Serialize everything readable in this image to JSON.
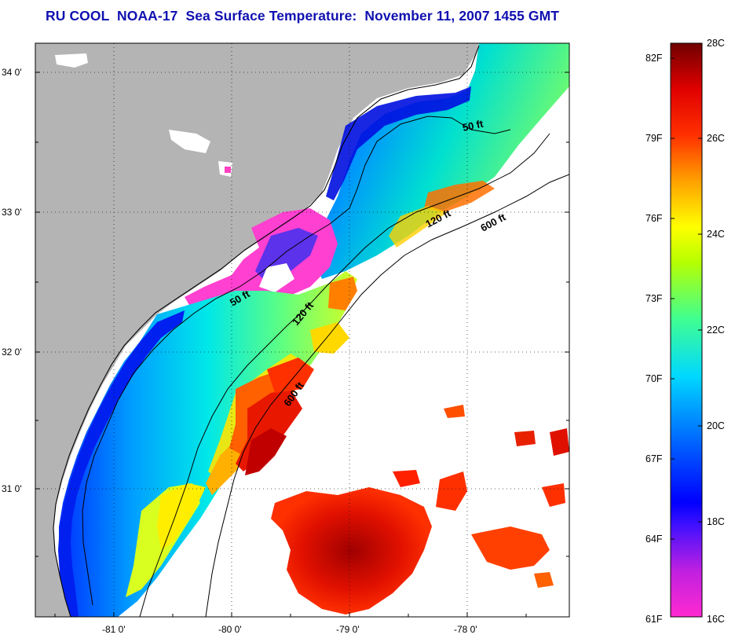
{
  "title": "RU COOL  NOAA-17  Sea Surface Temperature:  November 11, 2007 1455 GMT",
  "colors": {
    "land": "#b4b4b4",
    "title": "#1010b0",
    "cloud": "#ffffff"
  },
  "axes": {
    "lat_ticks": [
      "34 0'",
      "33 0'",
      "32 0'",
      "31 0'"
    ],
    "lon_ticks": [
      "-81 0'",
      "-80 0'",
      "-79 0'",
      "-78 0'"
    ]
  },
  "contours": {
    "isobath_50": "50 ft",
    "isobath_120": "120 ft",
    "isobath_600": "600 ft"
  },
  "colorbar": {
    "fahrenheit": [
      "82F",
      "79F",
      "76F",
      "73F",
      "70F",
      "67F",
      "64F",
      "61F"
    ],
    "celsius": [
      "28C",
      "26C",
      "24C",
      "22C",
      "20C",
      "18C",
      "16C"
    ],
    "celsius_range": [
      16,
      28
    ]
  }
}
